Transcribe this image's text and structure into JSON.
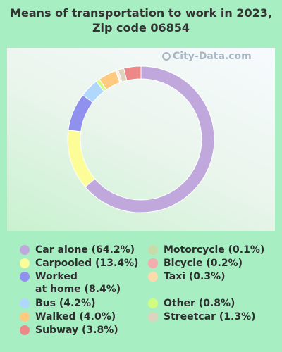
{
  "chart_data": {
    "type": "pie",
    "title": "Means of transportation to work in 2023, Zip code 06854",
    "watermark": "City-Data.com",
    "slices": [
      {
        "label": "Car alone (64.2%)",
        "value": 64.2,
        "color": "#c0a8dc"
      },
      {
        "label": "Carpooled (13.4%)",
        "value": 13.4,
        "color": "#fdfd98"
      },
      {
        "label": "Worked\nat home (8.4%)",
        "value": 8.4,
        "color": "#9090ee"
      },
      {
        "label": "Bus (4.2%)",
        "value": 4.2,
        "color": "#b0d8fc"
      },
      {
        "label": "Other (0.8%)",
        "value": 0.8,
        "color": "#d2fc7e"
      },
      {
        "label": "Walked (4.0%)",
        "value": 4.0,
        "color": "#fdca80"
      },
      {
        "label": "Motorcycle (0.1%)",
        "value": 0.1,
        "color": "#c8dcaa"
      },
      {
        "label": "Bicycle (0.2%)",
        "value": 0.2,
        "color": "#f4acac"
      },
      {
        "label": "Taxi (0.3%)",
        "value": 0.3,
        "color": "#fcdaac"
      },
      {
        "label": "Streetcar (1.3%)",
        "value": 1.3,
        "color": "#dcd4bc"
      },
      {
        "label": "Subway (3.8%)",
        "value": 3.8,
        "color": "#ec8888"
      }
    ],
    "legend_left": [
      0,
      1,
      2,
      3,
      5,
      10
    ],
    "legend_right": [
      6,
      7,
      8,
      4,
      9
    ]
  }
}
